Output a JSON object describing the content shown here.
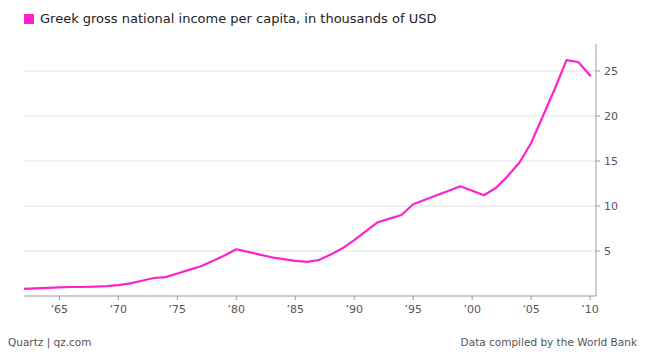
{
  "chart_data": {
    "type": "line",
    "title": "Greek gross national income per capita, in thousands of USD",
    "color": "#ff22cc",
    "annotations": [
      "Quartz | qz.com",
      "Data compiled by the World Bank"
    ],
    "x": [
      1962,
      1963,
      1964,
      1965,
      1966,
      1967,
      1968,
      1969,
      1970,
      1971,
      1972,
      1973,
      1974,
      1975,
      1976,
      1977,
      1978,
      1979,
      1980,
      1981,
      1982,
      1983,
      1984,
      1985,
      1986,
      1987,
      1988,
      1989,
      1990,
      1991,
      1992,
      1993,
      1994,
      1995,
      1996,
      1997,
      1998,
      1999,
      2000,
      2001,
      2002,
      2003,
      2004,
      2005,
      2006,
      2007,
      2008,
      2009,
      2010
    ],
    "values": [
      0.8,
      0.85,
      0.9,
      0.95,
      1.0,
      1.0,
      1.05,
      1.1,
      1.2,
      1.4,
      1.7,
      2.0,
      2.1,
      2.5,
      2.9,
      3.3,
      3.9,
      4.5,
      5.2,
      4.9,
      4.6,
      4.3,
      4.1,
      3.9,
      3.8,
      4.0,
      4.6,
      5.3,
      6.2,
      7.2,
      8.2,
      8.6,
      9.0,
      10.2,
      10.7,
      11.2,
      11.7,
      12.2,
      11.7,
      11.2,
      12.0,
      13.3,
      14.8,
      17.0,
      20.0,
      23.0,
      26.2,
      26.0,
      24.5
    ],
    "xlim": [
      1962,
      2010.5
    ],
    "xticks": [
      {
        "value": 1965,
        "label": "’65"
      },
      {
        "value": 1970,
        "label": "’70"
      },
      {
        "value": 1975,
        "label": "’75"
      },
      {
        "value": 1980,
        "label": "’80"
      },
      {
        "value": 1985,
        "label": "’85"
      },
      {
        "value": 1990,
        "label": "’90"
      },
      {
        "value": 1995,
        "label": "’95"
      },
      {
        "value": 2000,
        "label": "’00"
      },
      {
        "value": 2005,
        "label": "’05"
      },
      {
        "value": 2010,
        "label": "’10"
      }
    ],
    "ylim": [
      0,
      28
    ],
    "yticks": [
      5,
      10,
      15,
      20,
      25
    ],
    "grid": true
  }
}
